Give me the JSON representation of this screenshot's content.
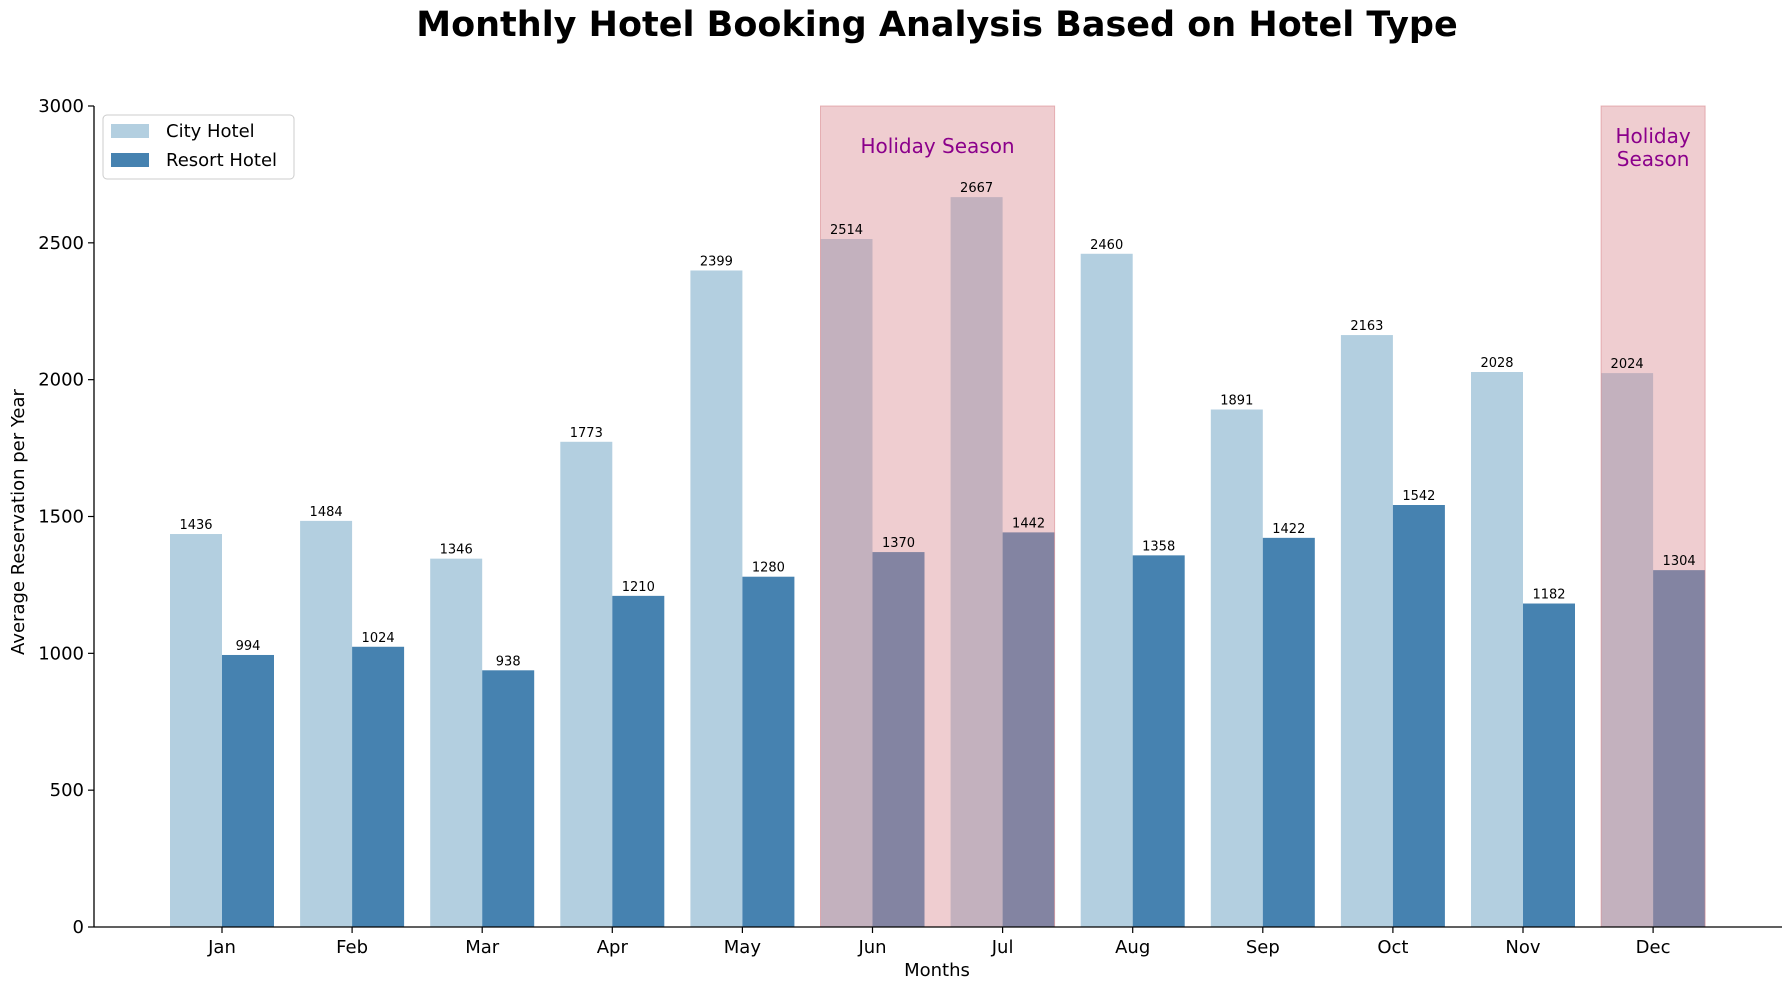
{
  "chart_data": {
    "type": "bar",
    "title": "Monthly Hotel Booking Analysis Based on Hotel Type",
    "xlabel": "Months",
    "ylabel": "Average Reservation per Year",
    "categories": [
      "Jan",
      "Feb",
      "Mar",
      "Apr",
      "May",
      "Jun",
      "Jul",
      "Aug",
      "Sep",
      "Oct",
      "Nov",
      "Dec"
    ],
    "series": [
      {
        "name": "City Hotel",
        "color": "#b3cfe0",
        "values": [
          1436,
          1484,
          1346,
          1773,
          2399,
          2514,
          2667,
          2460,
          1891,
          2163,
          2028,
          2024
        ]
      },
      {
        "name": "Resort Hotel",
        "color": "#4682b0",
        "values": [
          994,
          1024,
          938,
          1210,
          1280,
          1370,
          1442,
          1358,
          1422,
          1542,
          1182,
          1304
        ]
      }
    ],
    "ylim": [
      0,
      3000
    ],
    "yticks": [
      0,
      500,
      1000,
      1500,
      2000,
      2500,
      3000
    ],
    "grid": false,
    "legend_position": "top-left",
    "annotations": [
      {
        "label": "Holiday Season",
        "from": "Jun",
        "to": "Jul",
        "color": "#d9888e",
        "text_color": "#8b008b"
      },
      {
        "label": "Holiday\nSeason",
        "from": "Dec",
        "to": "Dec",
        "color": "#d9888e",
        "text_color": "#8b008b"
      }
    ]
  }
}
